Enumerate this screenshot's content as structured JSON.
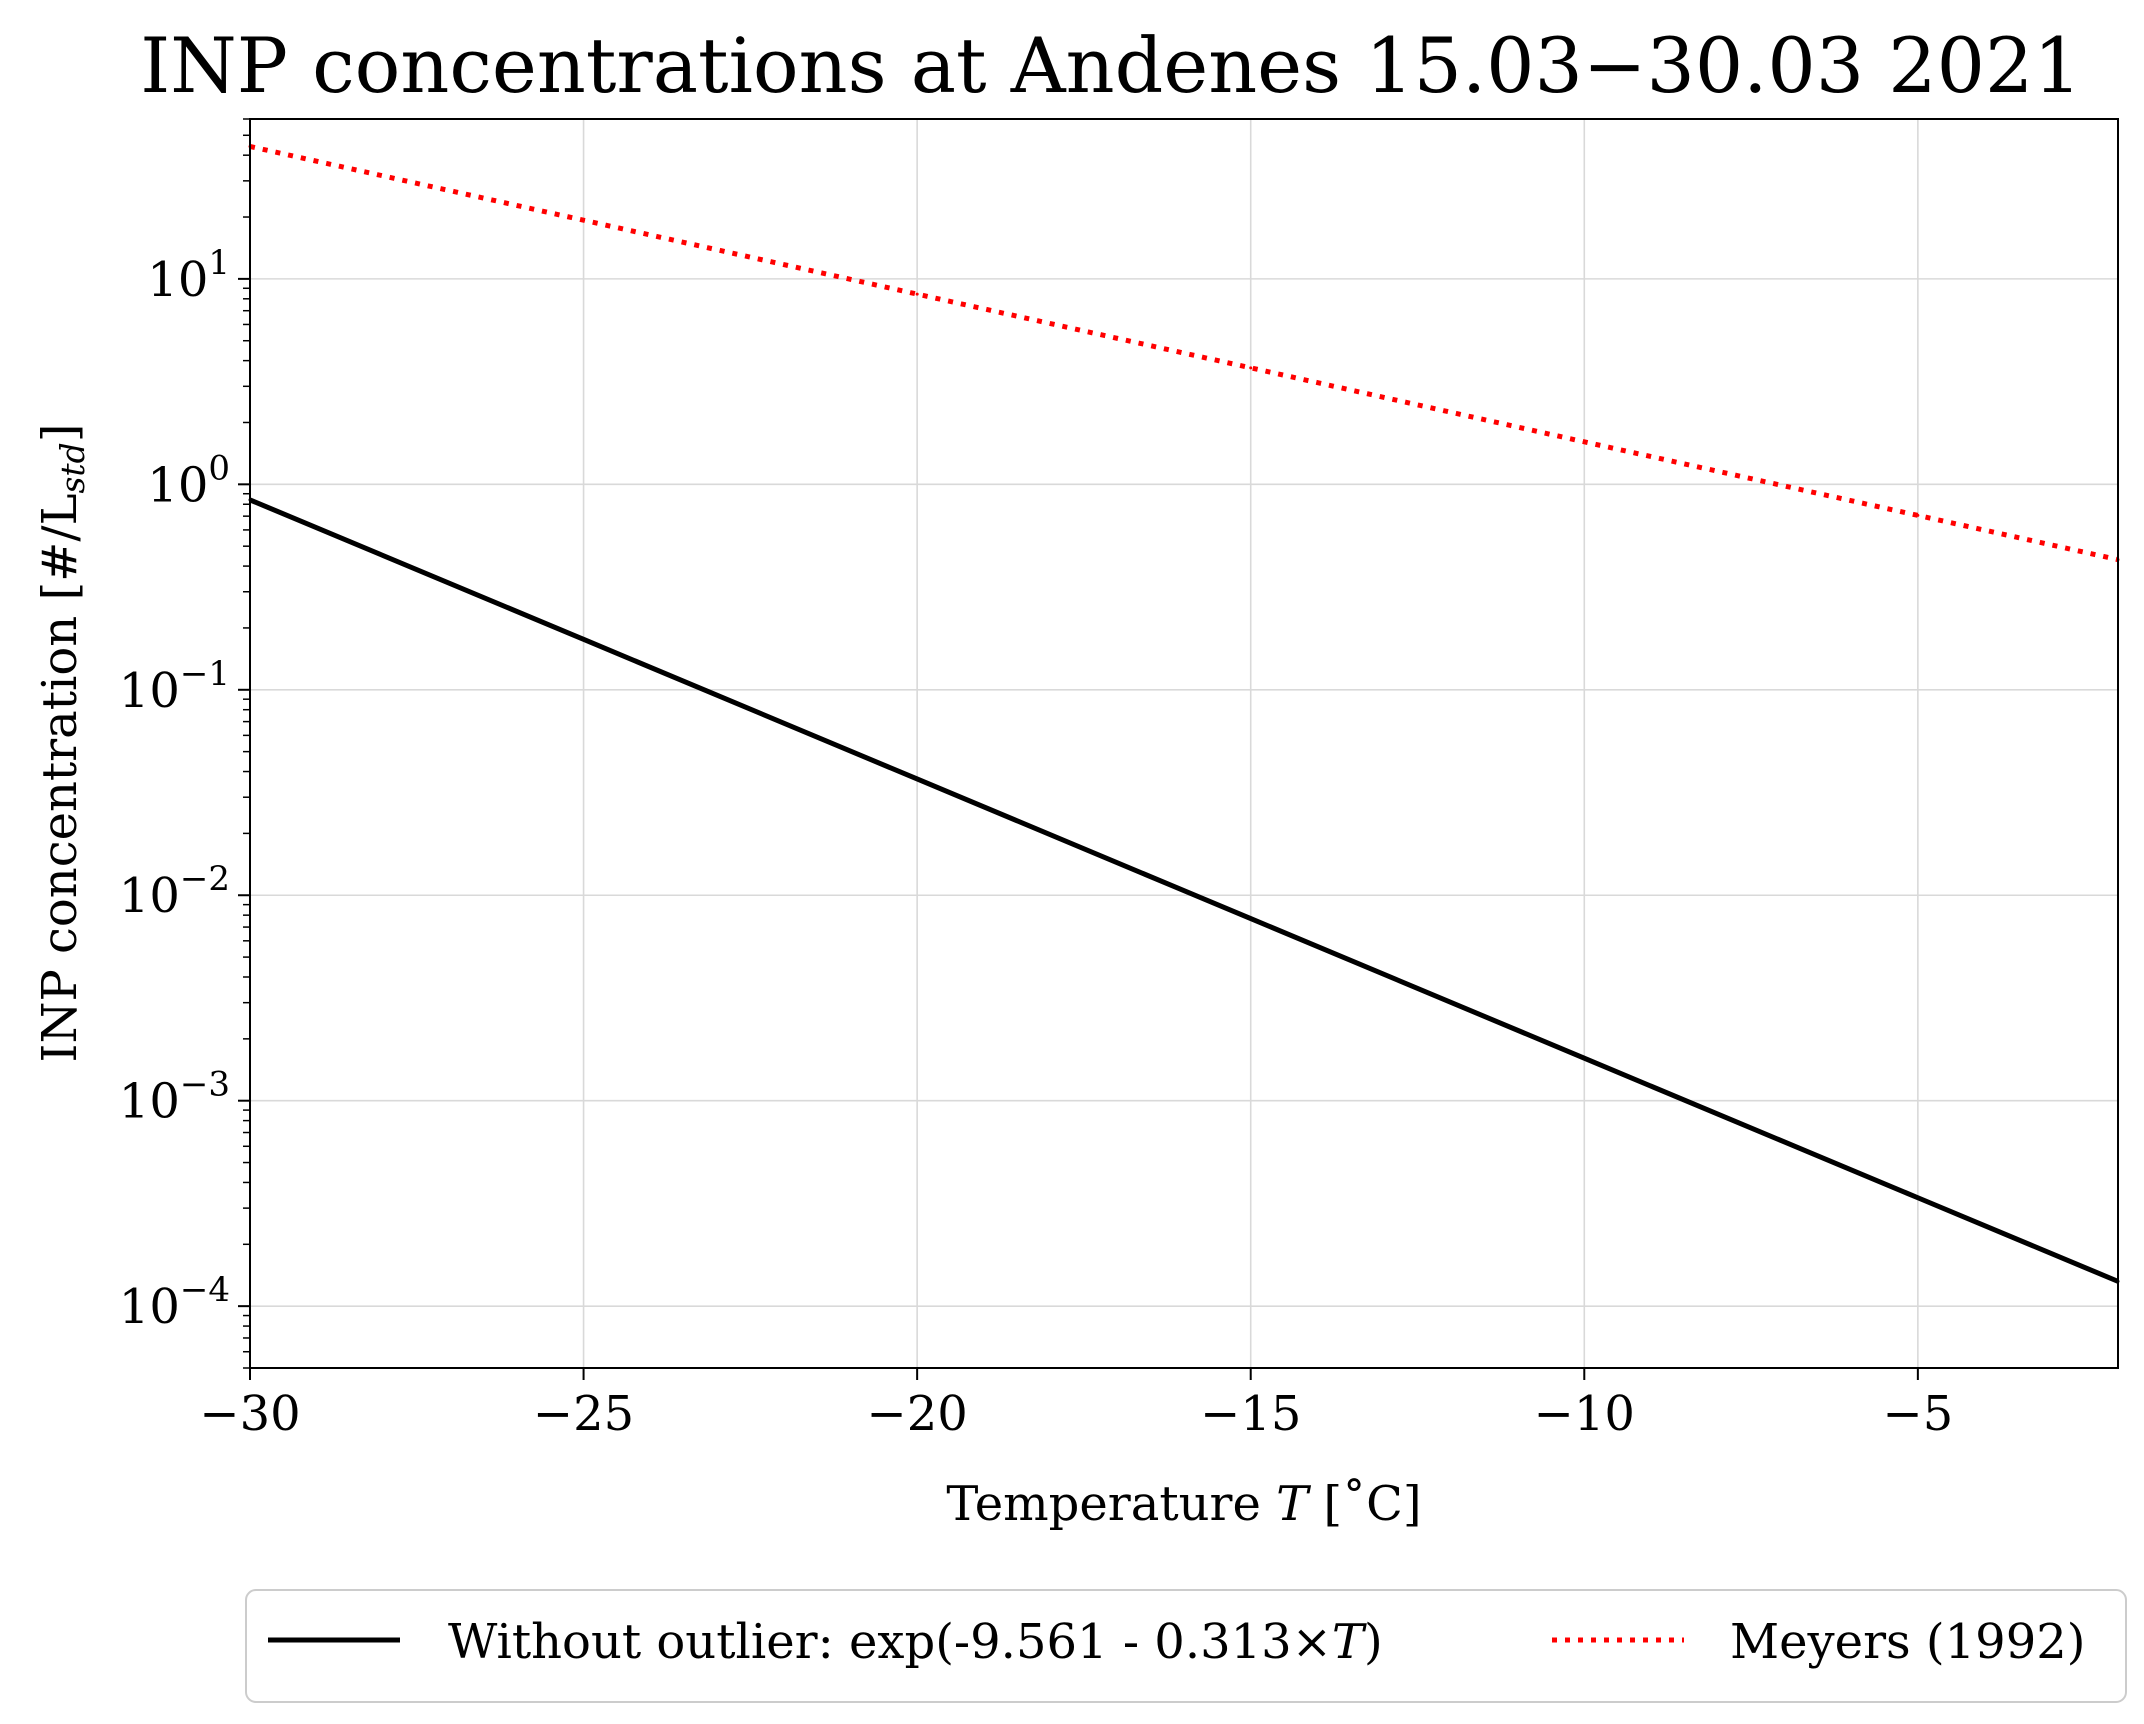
{
  "chart_data": {
    "type": "line",
    "title": "INP concentrations at Andenes 15.03−30.03 2021",
    "xlabel": {
      "prefix": "Temperature ",
      "var": "T",
      "suffix": " [˚C]"
    },
    "ylabel": {
      "prefix": "INP concentration [#/L",
      "sub": "std",
      "suffix": "]"
    },
    "xlim": [
      -30,
      -2
    ],
    "ylim": [
      5e-05,
      60
    ],
    "yscale": "log",
    "grid": true,
    "x_ticks": [
      {
        "value": -30,
        "label": "−30"
      },
      {
        "value": -25,
        "label": "−25"
      },
      {
        "value": -20,
        "label": "−20"
      },
      {
        "value": -15,
        "label": "−15"
      },
      {
        "value": -10,
        "label": "−10"
      },
      {
        "value": -5,
        "label": "−5"
      }
    ],
    "y_ticks": [
      {
        "value": 0.0001,
        "base": "10",
        "exp": "−4"
      },
      {
        "value": 0.001,
        "base": "10",
        "exp": "−3"
      },
      {
        "value": 0.01,
        "base": "10",
        "exp": "−2"
      },
      {
        "value": 0.1,
        "base": "10",
        "exp": "−1"
      },
      {
        "value": 1,
        "base": "10",
        "exp": "0"
      },
      {
        "value": 10,
        "base": "10",
        "exp": "1"
      }
    ],
    "legend_position": "bottom-center",
    "series": [
      {
        "name": {
          "prefix": "Without outlier: exp(-9.561 - 0.313×",
          "var": "T",
          "suffix": ")"
        },
        "style": "solid",
        "color": "#000000",
        "x": [
          -30,
          -25,
          -20,
          -15,
          -10,
          -5,
          -2
        ],
        "y": [
          0.84,
          0.176,
          0.0368,
          0.0077,
          0.00161,
          0.000337,
          0.000132
        ]
      },
      {
        "name": {
          "prefix": "Meyers (1992)",
          "var": "",
          "suffix": ""
        },
        "style": "dotted",
        "color": "#ff0000",
        "x": [
          -30,
          -25,
          -20,
          -15,
          -10,
          -5,
          -2
        ],
        "y": [
          44.1,
          19.3,
          8.43,
          3.69,
          1.61,
          0.706,
          0.43
        ]
      }
    ]
  }
}
